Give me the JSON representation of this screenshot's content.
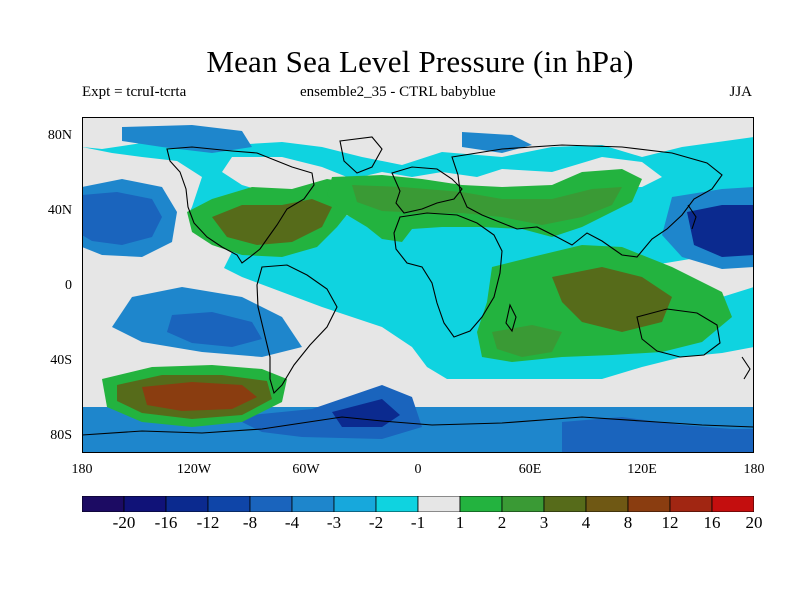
{
  "header": {
    "title": "Mean Sea Level Pressure (in hPa)",
    "expt": "Expt = tcruI-tcrta",
    "ensemble": "ensemble2_35 - CTRL babyblue",
    "season": "JJA"
  },
  "axes": {
    "lat_labels": [
      "80N",
      "40N",
      "0",
      "40S",
      "80S"
    ],
    "lon_labels": [
      "180",
      "120W",
      "60W",
      "0",
      "60E",
      "120E",
      "180"
    ]
  },
  "colorbar": {
    "colors": [
      "#1c0b63",
      "#101278",
      "#0b2a8f",
      "#0f45a8",
      "#1a64bd",
      "#1e86cc",
      "#17a8dc",
      "#0fd3e0",
      "#e6e6e6",
      "#23b33f",
      "#3a9a35",
      "#566b1a",
      "#6f5814",
      "#8a3d10",
      "#a12612",
      "#c40e0e"
    ],
    "labels": [
      "-20",
      "-16",
      "-12",
      "-8",
      "-4",
      "-3",
      "-2",
      "-1",
      "1",
      "2",
      "3",
      "4",
      "8",
      "12",
      "16",
      "20"
    ]
  },
  "regions": {
    "land_outline_color": "#000000"
  }
}
